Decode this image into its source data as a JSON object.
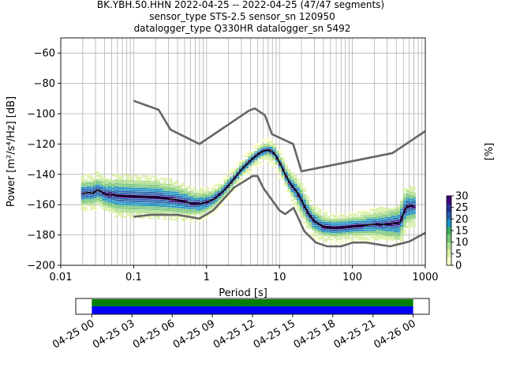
{
  "chart_data": {
    "type": "heatmap",
    "title_lines": [
      "BK.YBH.50.HHN   2022-04-25 -- 2022-04-25  (47/47 segments)",
      "sensor_type STS-2.5 sensor_sn 120950",
      "datalogger_type Q330HR datalogger_sn 5492"
    ],
    "xlabel": "Period [s]",
    "ylabel": "Power [m²/s⁴/Hz] [dB]",
    "xscale": "log",
    "xlim": [
      0.01,
      1000
    ],
    "ylim": [
      -200,
      -50
    ],
    "x_ticks": [
      {
        "v": 0.01,
        "label": "0.01"
      },
      {
        "v": 0.1,
        "label": "0.1"
      },
      {
        "v": 1,
        "label": "1"
      },
      {
        "v": 10,
        "label": "10"
      },
      {
        "v": 100,
        "label": "100"
      },
      {
        "v": 1000,
        "label": "1000"
      }
    ],
    "y_ticks": [
      {
        "v": -60,
        "label": "−60"
      },
      {
        "v": -80,
        "label": "−80"
      },
      {
        "v": -100,
        "label": "−100"
      },
      {
        "v": -120,
        "label": "−120"
      },
      {
        "v": -140,
        "label": "−140"
      },
      {
        "v": -160,
        "label": "−160"
      },
      {
        "v": -180,
        "label": "−180"
      },
      {
        "v": -200,
        "label": "−200"
      }
    ],
    "grid": true,
    "nhnm": [
      [
        0.1,
        -91.5
      ],
      [
        0.22,
        -97.4
      ],
      [
        0.32,
        -110.5
      ],
      [
        0.8,
        -120
      ],
      [
        3.8,
        -98
      ],
      [
        4.6,
        -96.5
      ],
      [
        6.3,
        -101
      ],
      [
        7.9,
        -113.5
      ],
      [
        15.4,
        -120
      ],
      [
        20,
        -138
      ],
      [
        354.8,
        -126
      ],
      [
        1000,
        -111.5
      ]
    ],
    "nlnm": [
      [
        0.1,
        -168
      ],
      [
        0.17,
        -166.7
      ],
      [
        0.4,
        -166.7
      ],
      [
        0.8,
        -169.2
      ],
      [
        1.24,
        -163.7
      ],
      [
        2.4,
        -148.6
      ],
      [
        4.3,
        -141.1
      ],
      [
        5,
        -141.1
      ],
      [
        6,
        -149
      ],
      [
        10,
        -163.8
      ],
      [
        12,
        -166.2
      ],
      [
        15.6,
        -162.1
      ],
      [
        21.9,
        -177.5
      ],
      [
        31.6,
        -185
      ],
      [
        45,
        -187.5
      ],
      [
        70,
        -187.5
      ],
      [
        101,
        -185
      ],
      [
        154,
        -185
      ],
      [
        328,
        -187.5
      ],
      [
        600,
        -184.4
      ],
      [
        1000,
        -178.6
      ]
    ],
    "median": [
      [
        0.02,
        -152.5
      ],
      [
        0.025,
        -152
      ],
      [
        0.028,
        -152.5
      ],
      [
        0.031,
        -150.5
      ],
      [
        0.035,
        -151
      ],
      [
        0.04,
        -153
      ],
      [
        0.06,
        -154
      ],
      [
        0.1,
        -154.5
      ],
      [
        0.2,
        -155
      ],
      [
        0.4,
        -157
      ],
      [
        0.6,
        -159
      ],
      [
        0.8,
        -159.5
      ],
      [
        1.0,
        -158.5
      ],
      [
        1.3,
        -156
      ],
      [
        1.7,
        -151
      ],
      [
        2.2,
        -145
      ],
      [
        3.0,
        -137
      ],
      [
        4.0,
        -131
      ],
      [
        5.0,
        -127
      ],
      [
        6.0,
        -124.5
      ],
      [
        7.0,
        -124
      ],
      [
        8.0,
        -125
      ],
      [
        9.0,
        -128
      ],
      [
        10.5,
        -134
      ],
      [
        12,
        -140
      ],
      [
        14,
        -146
      ],
      [
        17,
        -151
      ],
      [
        20,
        -157
      ],
      [
        25,
        -166
      ],
      [
        30,
        -171
      ],
      [
        40,
        -174.5
      ],
      [
        55,
        -175.5
      ],
      [
        80,
        -175
      ],
      [
        120,
        -174
      ],
      [
        200,
        -173
      ],
      [
        300,
        -173
      ],
      [
        450,
        -172
      ],
      [
        520,
        -164
      ],
      [
        560,
        -161
      ],
      [
        700,
        -161
      ]
    ],
    "spread": [
      [
        0.035,
        6
      ],
      [
        0.06,
        8
      ],
      [
        0.1,
        8
      ],
      [
        0.2,
        8
      ],
      [
        0.4,
        7
      ],
      [
        0.8,
        5
      ],
      [
        1.5,
        3
      ],
      [
        3,
        2
      ],
      [
        6,
        2
      ],
      [
        10,
        3
      ],
      [
        14,
        4
      ],
      [
        20,
        6
      ],
      [
        30,
        5
      ],
      [
        50,
        4
      ],
      [
        100,
        4
      ],
      [
        200,
        5
      ],
      [
        350,
        7
      ],
      [
        500,
        9
      ],
      [
        700,
        7
      ]
    ],
    "colorbar": {
      "label": "[%]",
      "range": [
        0,
        30
      ],
      "ticks": [
        {
          "v": 0,
          "label": "0"
        },
        {
          "v": 5,
          "label": "5"
        },
        {
          "v": 10,
          "label": "10"
        },
        {
          "v": 15,
          "label": "15"
        },
        {
          "v": 20,
          "label": "20"
        },
        {
          "v": 25,
          "label": "25"
        },
        {
          "v": 30,
          "label": "30"
        }
      ],
      "colormap": [
        "#ffffcc",
        "#d9f0a3",
        "#addd8e",
        "#78c679",
        "#41ab5d",
        "#1d91c0",
        "#225ea8",
        "#253494",
        "#3f007d"
      ]
    }
  },
  "coverage": {
    "x_ticks": [
      {
        "v": 0,
        "label": "04-25 00"
      },
      {
        "v": 3,
        "label": "04-25 03"
      },
      {
        "v": 6,
        "label": "04-25 06"
      },
      {
        "v": 9,
        "label": "04-25 09"
      },
      {
        "v": 12,
        "label": "04-25 12"
      },
      {
        "v": 15,
        "label": "04-25 15"
      },
      {
        "v": 18,
        "label": "04-25 18"
      },
      {
        "v": 21,
        "label": "04-25 21"
      },
      {
        "v": 24,
        "label": "04-26 00"
      }
    ],
    "xlim_hours": [
      -1.2,
      25.2
    ],
    "data_span_hours": [
      0,
      24
    ],
    "used_span_hours": [
      0,
      24
    ],
    "data_color": "#0000ff",
    "used_color": "#008000"
  },
  "colors": {
    "noise_model": "#666666",
    "median": "#000000",
    "grid": "#b0b0b0"
  }
}
